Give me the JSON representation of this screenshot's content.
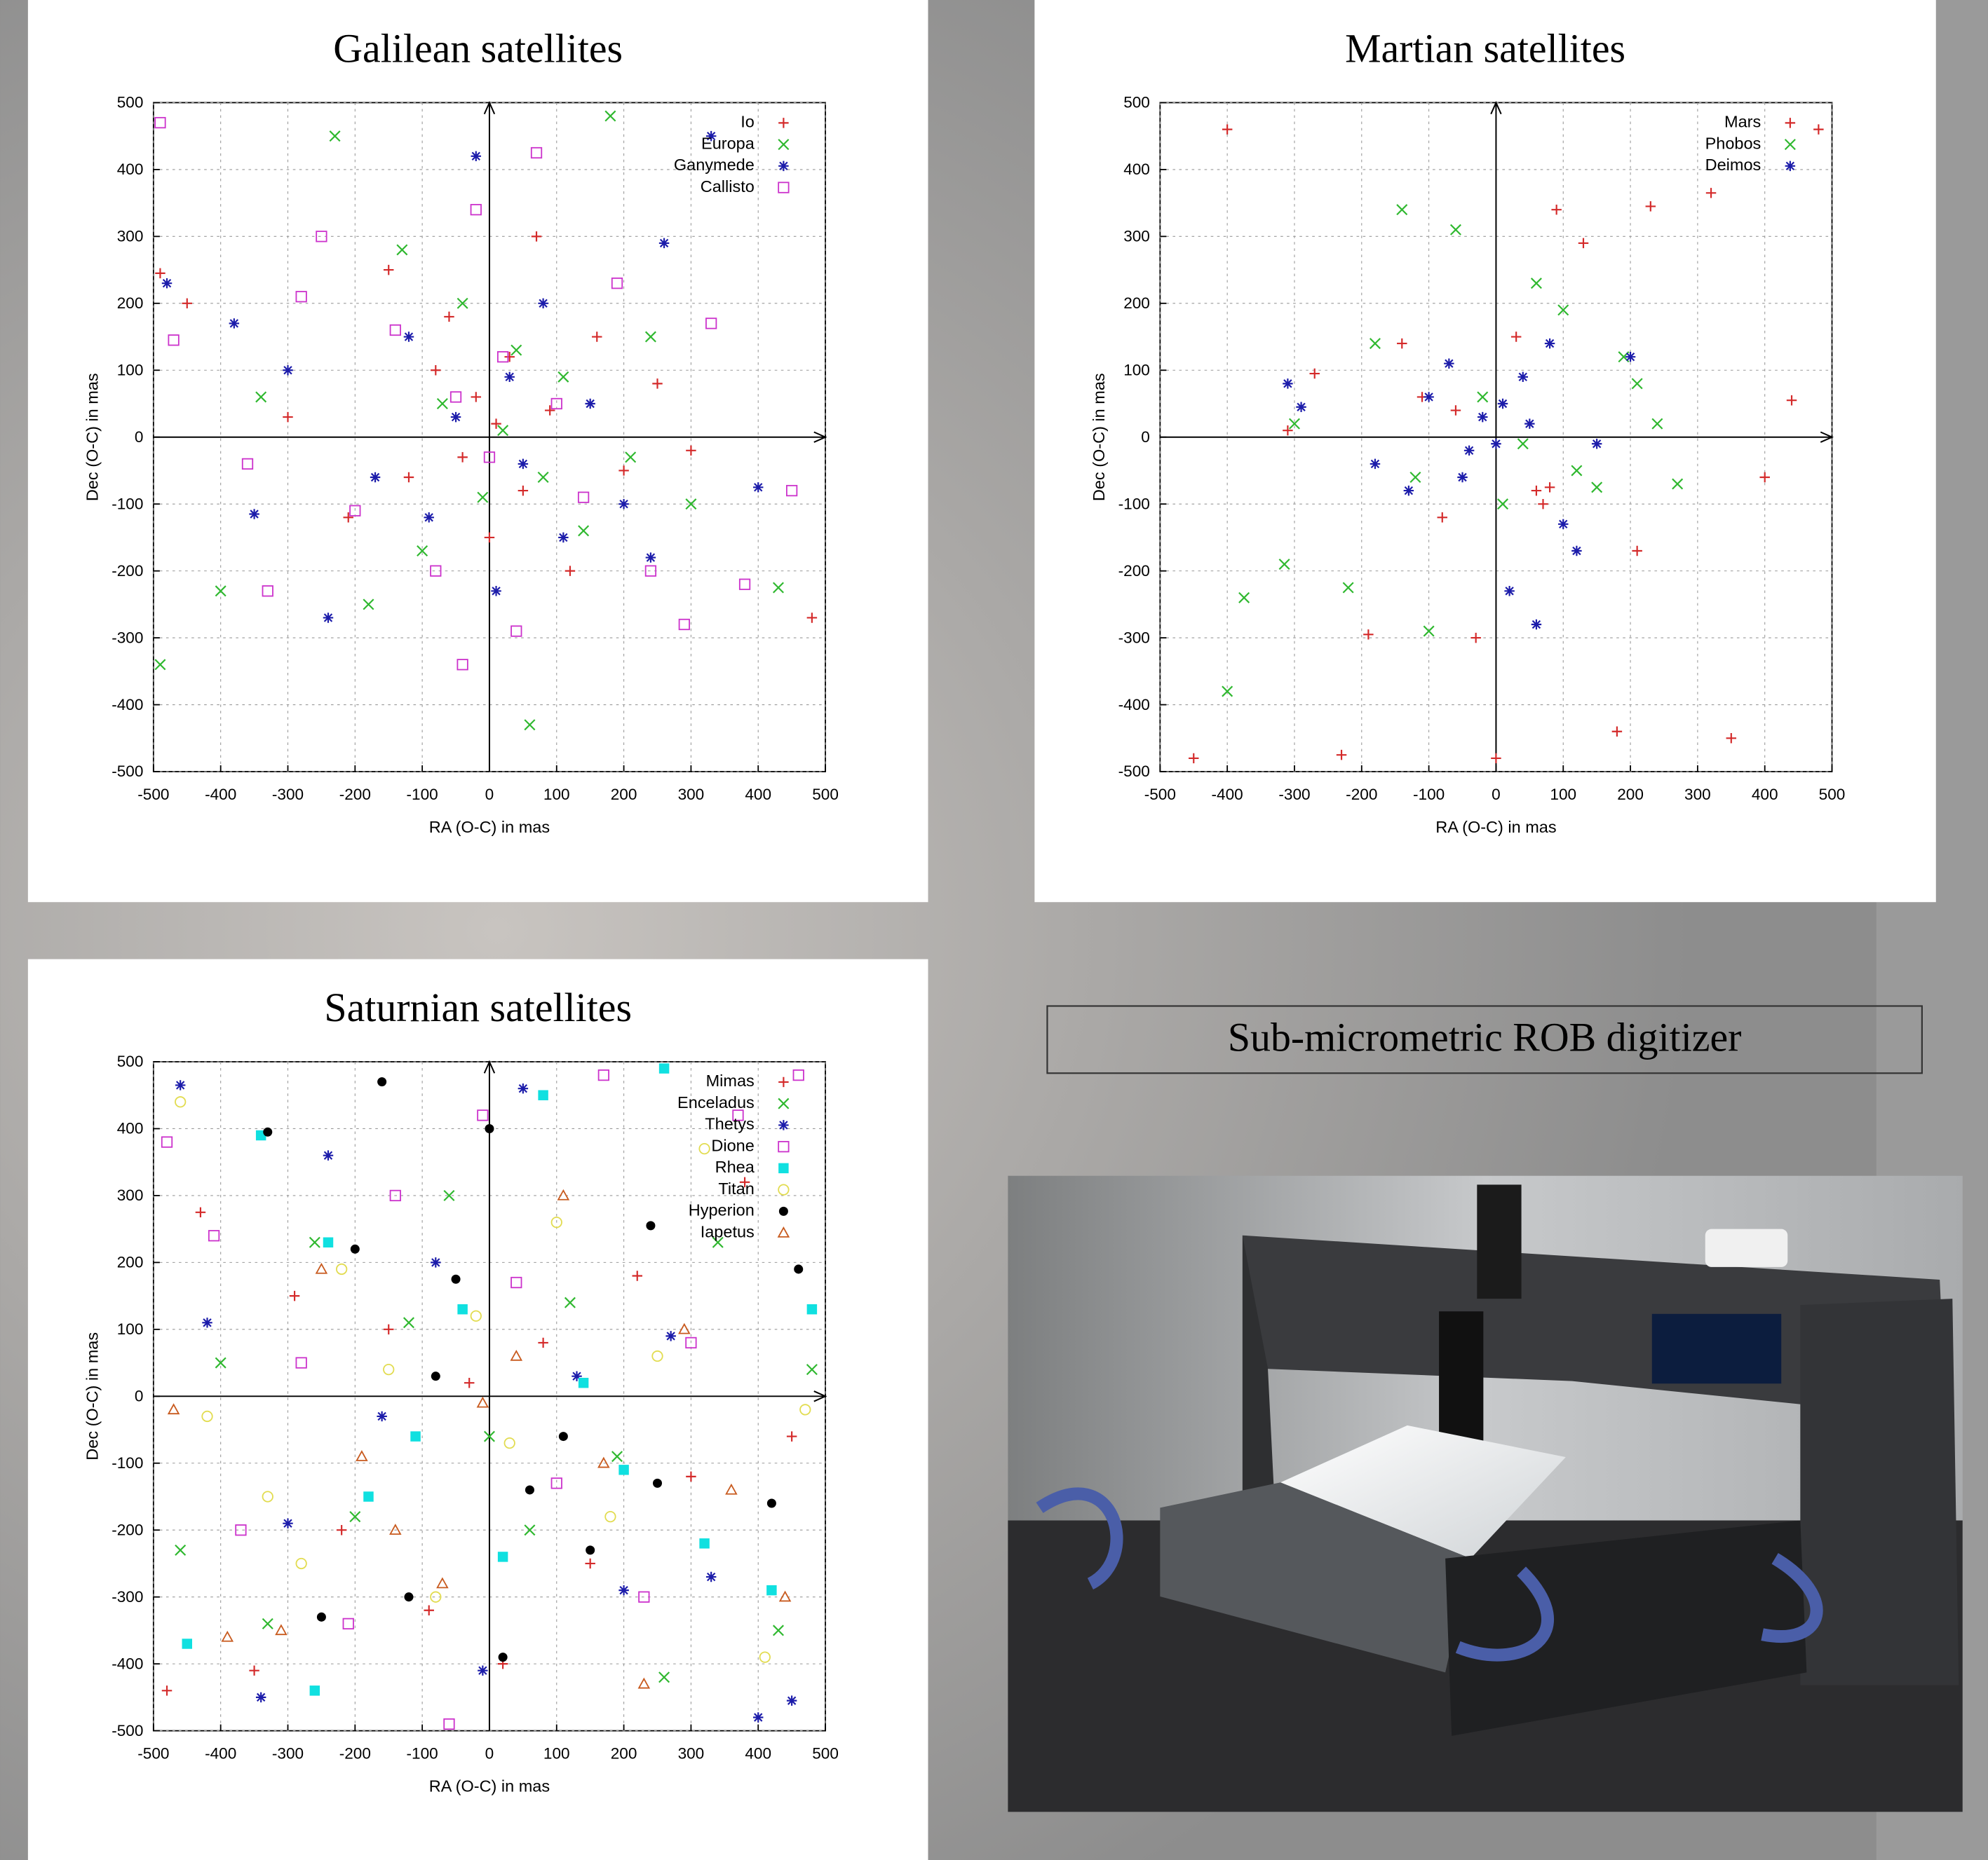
{
  "chart_data": [
    {
      "type": "scatter",
      "title": "Galilean satellites",
      "xlabel": "RA (O-C) in mas",
      "ylabel": "Dec (O-C) in mas",
      "xlim": [
        -500,
        500
      ],
      "ylim": [
        -500,
        500
      ],
      "xticks": [
        -500,
        -400,
        -300,
        -200,
        -100,
        0,
        100,
        200,
        300,
        400,
        500
      ],
      "yticks": [
        -500,
        -400,
        -300,
        -200,
        -100,
        0,
        100,
        200,
        300,
        400,
        500
      ],
      "grid": true,
      "legend": "upper right",
      "series": [
        {
          "name": "Io",
          "color": "#d42a2a",
          "marker": "plus",
          "x": [
            -490,
            -450,
            -300,
            -210,
            -150,
            -120,
            -80,
            -60,
            -40,
            -20,
            0,
            10,
            30,
            50,
            70,
            90,
            120,
            160,
            200,
            250,
            300,
            480
          ],
          "y": [
            245,
            200,
            30,
            -120,
            250,
            -60,
            100,
            180,
            -30,
            60,
            -150,
            20,
            120,
            -80,
            300,
            40,
            -200,
            150,
            -50,
            80,
            -20,
            -270
          ]
        },
        {
          "name": "Europa",
          "color": "#2fb82f",
          "marker": "cross",
          "x": [
            -490,
            -400,
            -340,
            -230,
            -180,
            -130,
            -100,
            -70,
            -40,
            -10,
            20,
            40,
            60,
            80,
            110,
            140,
            180,
            240,
            300,
            430,
            210
          ],
          "y": [
            -340,
            -230,
            60,
            450,
            -250,
            280,
            -170,
            50,
            200,
            -90,
            10,
            130,
            -430,
            -60,
            90,
            -140,
            480,
            150,
            -100,
            -225,
            -30
          ]
        },
        {
          "name": "Ganymede",
          "color": "#1c1caa",
          "marker": "star",
          "x": [
            -480,
            -380,
            -350,
            -300,
            -240,
            -170,
            -120,
            -90,
            -50,
            -20,
            10,
            30,
            50,
            80,
            110,
            150,
            200,
            260,
            330,
            400,
            240
          ],
          "y": [
            230,
            170,
            -115,
            100,
            -270,
            -60,
            150,
            -120,
            30,
            420,
            -230,
            90,
            -40,
            200,
            -150,
            50,
            -100,
            290,
            450,
            -75,
            -180
          ]
        },
        {
          "name": "Callisto",
          "color": "#cc33cc",
          "marker": "square",
          "x": [
            -490,
            -470,
            -360,
            -330,
            -280,
            -250,
            -200,
            -140,
            -80,
            -50,
            -20,
            0,
            20,
            40,
            70,
            100,
            140,
            190,
            240,
            290,
            330,
            380,
            450,
            -40
          ],
          "y": [
            470,
            145,
            -40,
            -230,
            210,
            300,
            -110,
            160,
            -200,
            60,
            340,
            -30,
            120,
            -290,
            425,
            50,
            -90,
            230,
            -200,
            -280,
            170,
            -220,
            -80,
            -340
          ]
        }
      ]
    },
    {
      "type": "scatter",
      "title": "Martian satellites",
      "xlabel": "RA (O-C) in mas",
      "ylabel": "Dec (O-C) in mas",
      "xlim": [
        -500,
        500
      ],
      "ylim": [
        -500,
        500
      ],
      "xticks": [
        -500,
        -400,
        -300,
        -200,
        -100,
        0,
        100,
        200,
        300,
        400,
        500
      ],
      "yticks": [
        -500,
        -400,
        -300,
        -200,
        -100,
        0,
        100,
        200,
        300,
        400,
        500
      ],
      "grid": true,
      "legend": "upper right",
      "series": [
        {
          "name": "Mars",
          "color": "#d42a2a",
          "marker": "plus",
          "x": [
            -450,
            -400,
            -310,
            -270,
            -230,
            -190,
            -140,
            -110,
            -80,
            -60,
            -30,
            0,
            30,
            60,
            70,
            80,
            90,
            130,
            180,
            210,
            230,
            320,
            350,
            400,
            440,
            480
          ],
          "y": [
            -480,
            460,
            10,
            95,
            -475,
            -295,
            140,
            60,
            -120,
            40,
            -300,
            -480,
            150,
            -80,
            -100,
            -75,
            340,
            290,
            -440,
            -170,
            345,
            365,
            -450,
            -60,
            55,
            460
          ]
        },
        {
          "name": "Phobos",
          "color": "#2fb82f",
          "marker": "cross",
          "x": [
            -400,
            -375,
            -315,
            -300,
            -220,
            -180,
            -140,
            -120,
            -100,
            -60,
            -20,
            10,
            40,
            60,
            100,
            120,
            150,
            190,
            210,
            240,
            270
          ],
          "y": [
            -380,
            -240,
            -190,
            20,
            -225,
            140,
            340,
            -60,
            -290,
            310,
            60,
            -100,
            -10,
            230,
            190,
            -50,
            -75,
            120,
            80,
            20,
            -70
          ]
        },
        {
          "name": "Deimos",
          "color": "#1c1caa",
          "marker": "star",
          "x": [
            -310,
            -290,
            -180,
            -130,
            -100,
            -70,
            -40,
            -20,
            0,
            20,
            40,
            60,
            80,
            100,
            120,
            150,
            200,
            -50,
            10,
            50
          ],
          "y": [
            80,
            45,
            -40,
            -80,
            60,
            110,
            -20,
            30,
            -10,
            -230,
            90,
            -280,
            140,
            -130,
            -170,
            -10,
            120,
            -60,
            50,
            20
          ]
        }
      ]
    },
    {
      "type": "scatter",
      "title": "Saturnian satellites",
      "xlabel": "RA (O-C) in mas",
      "ylabel": "Dec (O-C) in mas",
      "xlim": [
        -500,
        500
      ],
      "ylim": [
        -500,
        500
      ],
      "xticks": [
        -500,
        -400,
        -300,
        -200,
        -100,
        0,
        100,
        200,
        300,
        400,
        500
      ],
      "yticks": [
        -500,
        -400,
        -300,
        -200,
        -100,
        0,
        100,
        200,
        300,
        400,
        500
      ],
      "grid": true,
      "legend": "upper right",
      "series": [
        {
          "name": "Mimas",
          "color": "#d42a2a",
          "marker": "plus",
          "x": [
            -480,
            -430,
            -350,
            -290,
            -220,
            -150,
            -90,
            -30,
            20,
            80,
            150,
            220,
            300,
            380,
            450
          ],
          "y": [
            -440,
            275,
            -410,
            150,
            -200,
            100,
            -320,
            20,
            -400,
            80,
            -250,
            180,
            -120,
            320,
            -60
          ]
        },
        {
          "name": "Enceladus",
          "color": "#2fb82f",
          "marker": "cross",
          "x": [
            -460,
            -400,
            -330,
            -260,
            -200,
            -120,
            -60,
            0,
            60,
            120,
            190,
            260,
            340,
            430,
            480
          ],
          "y": [
            -230,
            50,
            -340,
            230,
            -180,
            110,
            300,
            -60,
            -200,
            140,
            -90,
            -420,
            230,
            -350,
            40
          ]
        },
        {
          "name": "Thetys",
          "color": "#1c1caa",
          "marker": "star",
          "x": [
            -460,
            -420,
            -340,
            -300,
            -240,
            -160,
            -80,
            -10,
            50,
            130,
            200,
            270,
            330,
            400,
            450
          ],
          "y": [
            465,
            110,
            -450,
            -190,
            360,
            -30,
            200,
            -410,
            460,
            30,
            -290,
            90,
            -270,
            -480,
            -455
          ]
        },
        {
          "name": "Dione",
          "color": "#cc33cc",
          "marker": "square",
          "x": [
            -480,
            -410,
            -370,
            -280,
            -210,
            -140,
            -60,
            -10,
            40,
            100,
            170,
            230,
            300,
            370,
            460
          ],
          "y": [
            380,
            240,
            -200,
            50,
            -340,
            300,
            -490,
            420,
            170,
            -130,
            480,
            -300,
            80,
            420,
            480
          ]
        },
        {
          "name": "Rhea",
          "color": "#10e0e0",
          "marker": "filled-square",
          "x": [
            -450,
            -340,
            -260,
            -240,
            -180,
            -110,
            -40,
            20,
            80,
            140,
            200,
            260,
            320,
            420,
            480
          ],
          "y": [
            -370,
            390,
            -440,
            230,
            -150,
            -60,
            130,
            -240,
            450,
            20,
            -110,
            490,
            -220,
            -290,
            130
          ]
        },
        {
          "name": "Titan",
          "color": "#e2dc50",
          "marker": "circle",
          "x": [
            -460,
            -420,
            -330,
            -280,
            -220,
            -150,
            -80,
            -20,
            30,
            100,
            180,
            250,
            320,
            410,
            470
          ],
          "y": [
            440,
            -30,
            -150,
            -250,
            190,
            40,
            -300,
            120,
            -70,
            260,
            -180,
            60,
            370,
            -390,
            -20
          ]
        },
        {
          "name": "Hyperion",
          "color": "#000000",
          "marker": "filled-circle",
          "x": [
            -330,
            -250,
            -200,
            -160,
            -120,
            -80,
            -50,
            0,
            20,
            60,
            110,
            150,
            240,
            250,
            420,
            460
          ],
          "y": [
            395,
            -330,
            220,
            470,
            -300,
            30,
            175,
            400,
            -390,
            -140,
            -60,
            -230,
            255,
            -130,
            -160,
            190
          ]
        },
        {
          "name": "Iapetus",
          "color": "#c85a1e",
          "marker": "triangle",
          "x": [
            -470,
            -390,
            -310,
            -250,
            -190,
            -140,
            -70,
            -10,
            40,
            110,
            170,
            230,
            290,
            360,
            440
          ],
          "y": [
            -20,
            -360,
            -350,
            190,
            -90,
            -200,
            -280,
            -10,
            60,
            300,
            -100,
            -430,
            100,
            -140,
            -300
          ]
        }
      ]
    }
  ],
  "caption": "Sub-micrometric ROB digitizer"
}
